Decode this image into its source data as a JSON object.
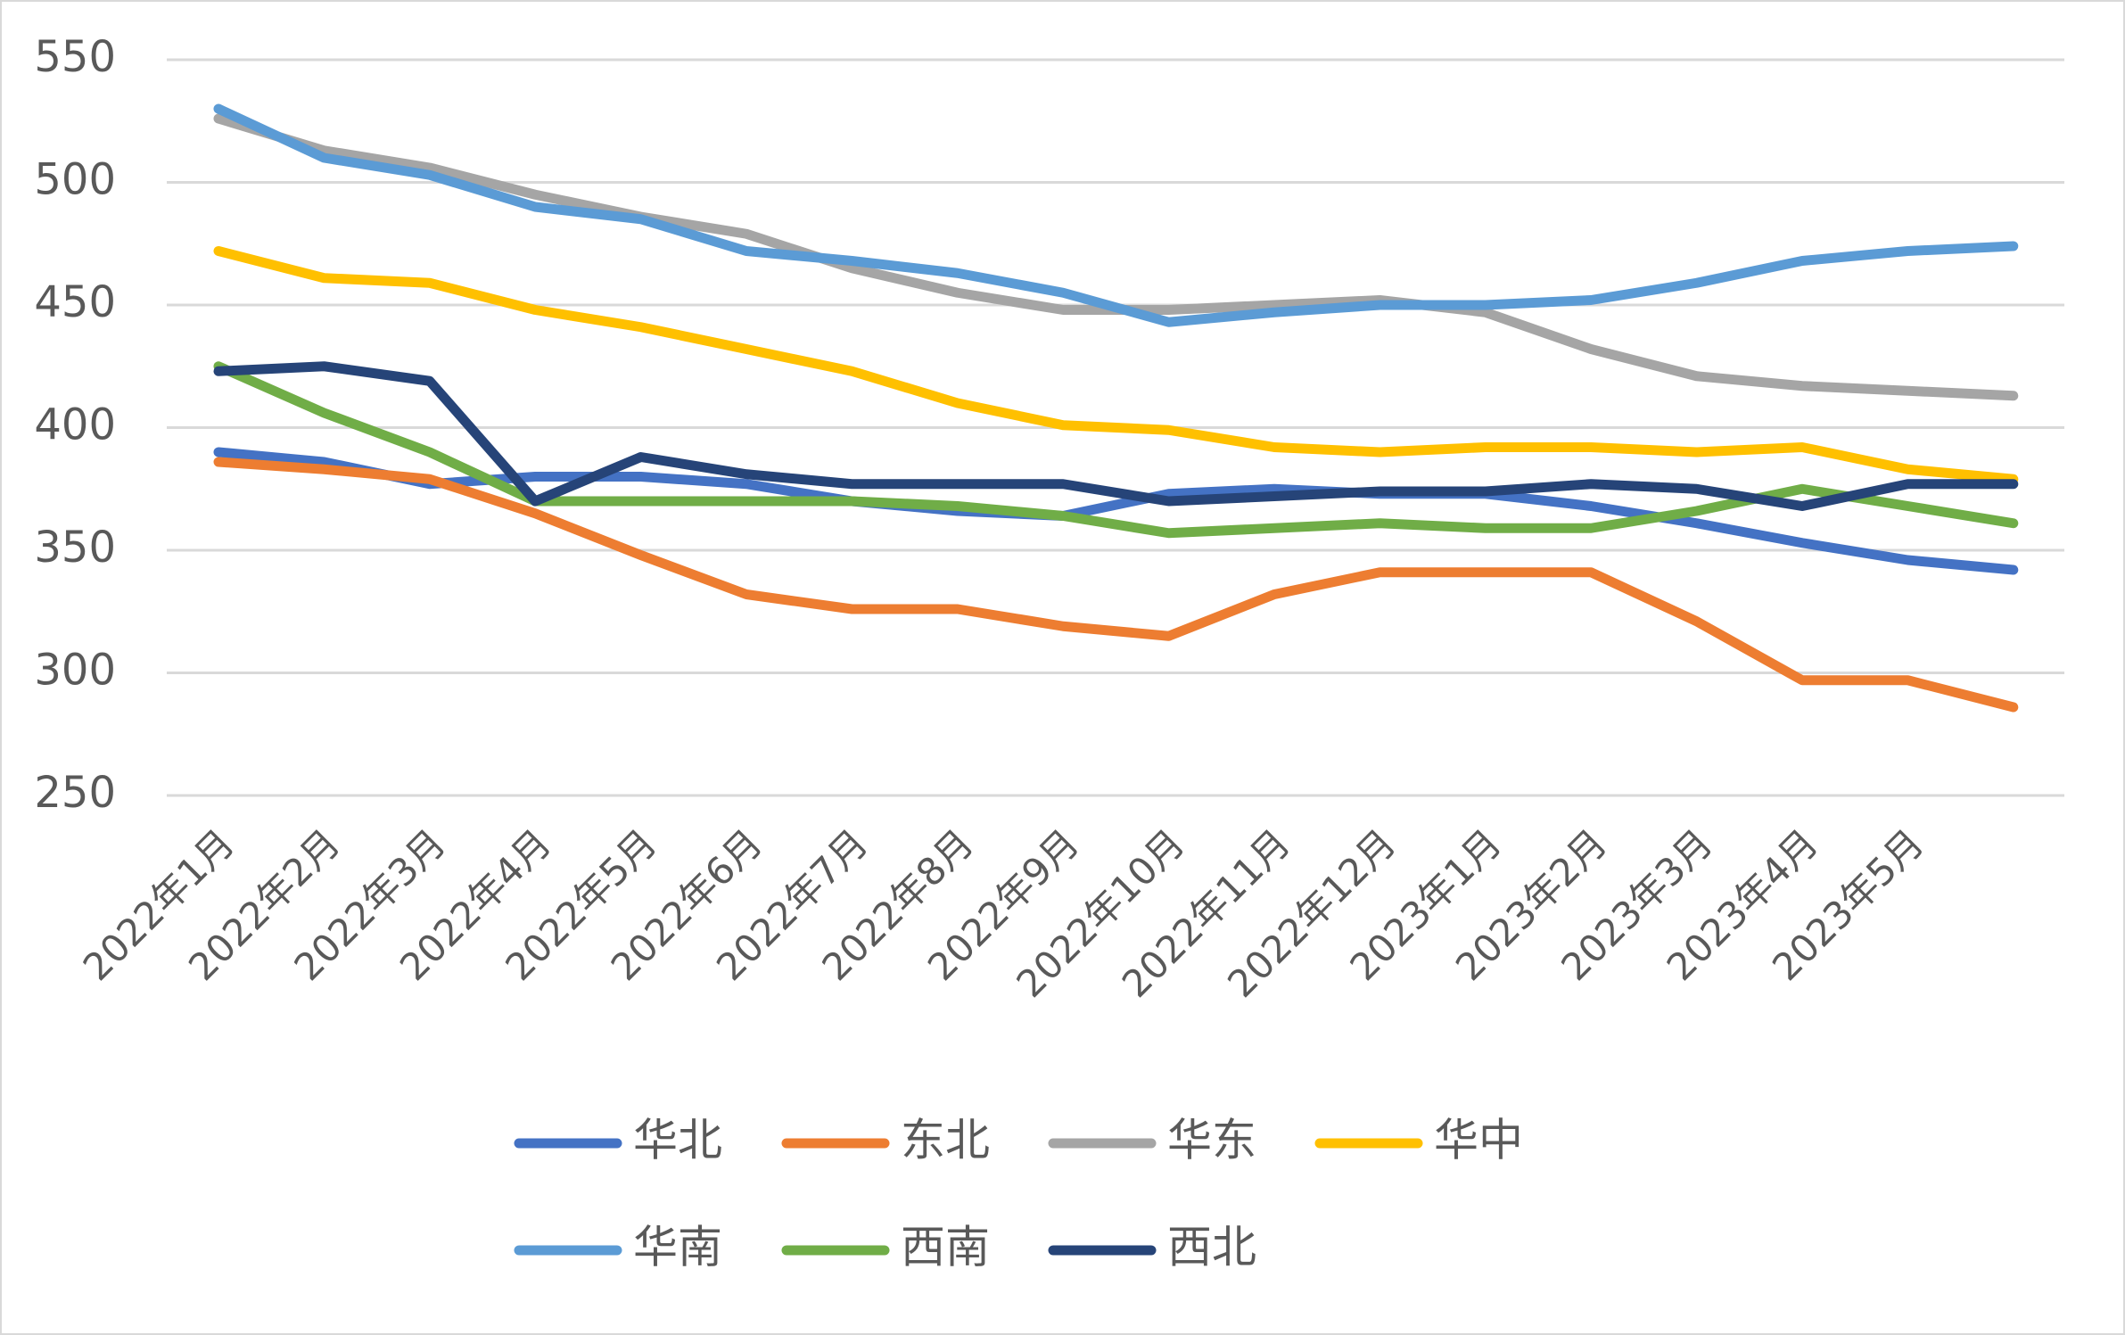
{
  "chart_data": {
    "type": "line",
    "categories": [
      "2022年1月",
      "2022年2月",
      "2022年3月",
      "2022年4月",
      "2022年5月",
      "2022年6月",
      "2022年7月",
      "2022年8月",
      "2022年9月",
      "2022年10月",
      "2022年11月",
      "2022年12月",
      "2023年1月",
      "2023年2月",
      "2023年3月",
      "2023年4月",
      "2023年5月",
      null
    ],
    "series": [
      {
        "name": "华北",
        "color": "#4472c4",
        "values": [
          390,
          386,
          377,
          380,
          380,
          377,
          370,
          366,
          364,
          373,
          375,
          373,
          373,
          368,
          361,
          353,
          346,
          342
        ]
      },
      {
        "name": "东北",
        "color": "#ed7d31",
        "values": [
          386,
          383,
          379,
          365,
          348,
          332,
          326,
          326,
          319,
          315,
          332,
          341,
          341,
          341,
          321,
          297,
          297,
          286
        ]
      },
      {
        "name": "华东",
        "color": "#a5a5a5",
        "values": [
          526,
          513,
          506,
          495,
          486,
          479,
          465,
          455,
          448,
          448,
          450,
          452,
          447,
          432,
          421,
          417,
          415,
          413
        ]
      },
      {
        "name": "华中",
        "color": "#ffc000",
        "values": [
          472,
          461,
          459,
          448,
          441,
          432,
          423,
          410,
          401,
          399,
          392,
          390,
          392,
          392,
          390,
          392,
          383,
          379
        ]
      },
      {
        "name": "华南",
        "color": "#5b9bd5",
        "values": [
          530,
          510,
          503,
          490,
          485,
          472,
          468,
          463,
          455,
          443,
          447,
          450,
          450,
          452,
          459,
          468,
          472,
          474
        ]
      },
      {
        "name": "西南",
        "color": "#70ad47",
        "values": [
          425,
          406,
          390,
          370,
          370,
          370,
          370,
          368,
          364,
          357,
          359,
          361,
          359,
          359,
          366,
          375,
          368,
          361
        ]
      },
      {
        "name": "西北",
        "color": "#264478",
        "values": [
          423,
          425,
          419,
          370,
          388,
          381,
          377,
          377,
          377,
          370,
          372,
          374,
          374,
          377,
          375,
          368,
          377,
          377
        ]
      }
    ],
    "ylim": [
      250,
      550
    ],
    "yticks": [
      250,
      300,
      350,
      400,
      450,
      500,
      550
    ],
    "grid": true
  }
}
